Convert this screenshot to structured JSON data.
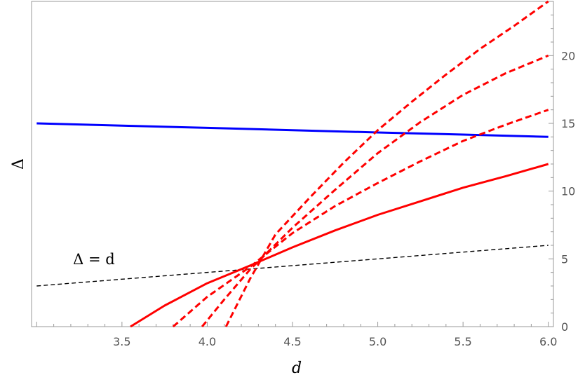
{
  "chart_data": {
    "type": "line",
    "xlabel": "d",
    "ylabel": "Δ",
    "xlim": [
      2.97,
      6.03
    ],
    "ylim": [
      0,
      24
    ],
    "x_ticks": [
      3.5,
      4.0,
      4.5,
      5.0,
      5.5,
      6.0
    ],
    "x_tick_labels": [
      "3.5",
      "4.0",
      "4.5",
      "5.0",
      "5.5",
      "6.0"
    ],
    "y_ticks": [
      0,
      5,
      10,
      15,
      20
    ],
    "y_tick_labels": [
      "0",
      "5",
      "10",
      "15",
      "20"
    ],
    "y_axis_side": "right",
    "grid": false,
    "series": [
      {
        "color": "#0000ff",
        "style": "solid",
        "x": [
          3.0,
          3.5,
          4.0,
          4.5,
          5.0,
          5.5,
          6.0
        ],
        "y": [
          15.0,
          14.83,
          14.67,
          14.5,
          14.33,
          14.17,
          14.0
        ]
      },
      {
        "color": "#000000",
        "style": "dashed",
        "x": [
          3.0,
          6.0
        ],
        "y": [
          3.0,
          6.0
        ]
      },
      {
        "color": "#ff0000",
        "style": "solid",
        "x": [
          3.55,
          3.75,
          4.0,
          4.25,
          4.5,
          4.75,
          5.0,
          5.25,
          5.5,
          5.75,
          6.0
        ],
        "y": [
          0.0,
          1.55,
          3.2,
          4.5,
          5.85,
          7.1,
          8.25,
          9.25,
          10.25,
          11.1,
          12.0
        ]
      },
      {
        "color": "#ff0000",
        "style": "dashed",
        "x": [
          3.8,
          4.0,
          4.25,
          4.5,
          4.75,
          5.0,
          5.25,
          5.5,
          5.75,
          6.0
        ],
        "y": [
          0.0,
          2.2,
          4.4,
          6.9,
          8.9,
          10.6,
          12.2,
          13.7,
          14.9,
          16.0
        ]
      },
      {
        "color": "#ff0000",
        "style": "dashed",
        "x": [
          3.97,
          4.1,
          4.25,
          4.5,
          4.75,
          5.0,
          5.25,
          5.5,
          5.75,
          6.0
        ],
        "y": [
          0.0,
          2.0,
          4.2,
          7.3,
          10.1,
          12.8,
          15.1,
          17.1,
          18.7,
          20.0
        ]
      },
      {
        "color": "#ff0000",
        "style": "dashed",
        "x": [
          4.11,
          4.25,
          4.4,
          4.6,
          4.8,
          5.0,
          5.2,
          5.4,
          5.6,
          5.8,
          6.0
        ],
        "y": [
          0.0,
          3.5,
          6.8,
          9.5,
          12.1,
          14.5,
          16.6,
          18.6,
          20.5,
          22.2,
          24.0
        ]
      }
    ],
    "annotations": [
      {
        "text": "Δ = d",
        "x": 3.46,
        "y": 4.6
      }
    ]
  }
}
